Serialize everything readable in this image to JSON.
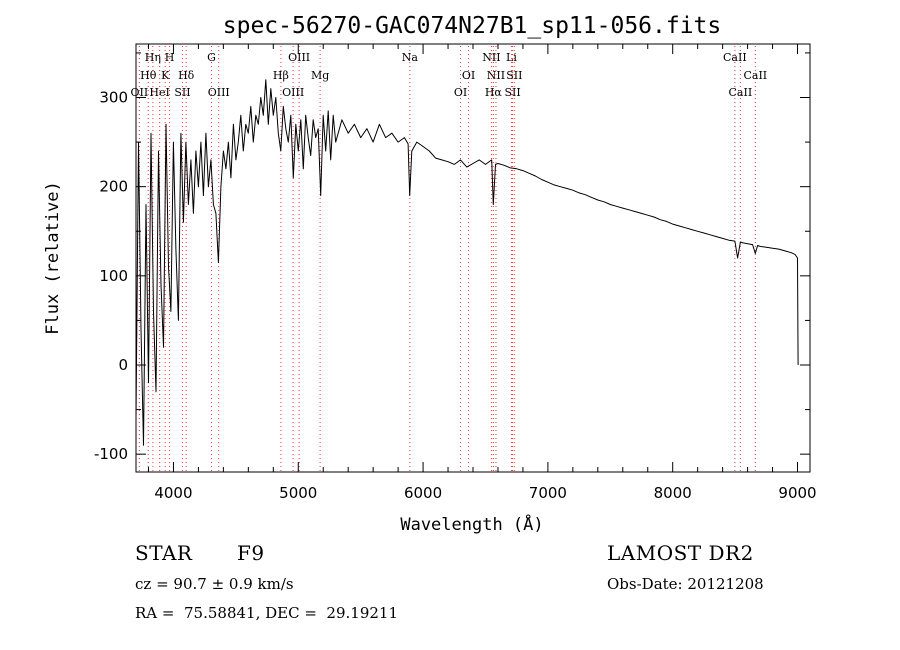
{
  "chart_data": {
    "type": "line",
    "title": "spec-56270-GAC074N27B1_sp11-056.fits",
    "xlabel": "Wavelength (Å)",
    "ylabel": "Flux (relative)",
    "xlim": [
      3700,
      9100
    ],
    "ylim": [
      -120,
      360
    ],
    "xticks": [
      4000,
      5000,
      6000,
      7000,
      8000,
      9000
    ],
    "yticks": [
      -100,
      0,
      100,
      200,
      300
    ],
    "grid": false,
    "series": [
      {
        "x": [
          3700,
          3720,
          3740,
          3760,
          3780,
          3800,
          3820,
          3840,
          3860,
          3880,
          3900,
          3920,
          3940,
          3960,
          3980,
          4000,
          4020,
          4040,
          4060,
          4080,
          4100,
          4120,
          4140,
          4160,
          4180,
          4200,
          4220,
          4240,
          4260,
          4280,
          4300,
          4320,
          4340,
          4360,
          4380,
          4400,
          4420,
          4440,
          4460,
          4480,
          4500,
          4520,
          4540,
          4560,
          4580,
          4600,
          4620,
          4640,
          4660,
          4680,
          4700,
          4720,
          4740,
          4760,
          4780,
          4800,
          4820,
          4840,
          4860,
          4880,
          4900,
          4920,
          4940,
          4960,
          4980,
          5000,
          5020,
          5040,
          5060,
          5080,
          5100,
          5120,
          5140,
          5160,
          5180,
          5200,
          5220,
          5240,
          5260,
          5280,
          5300,
          5350,
          5400,
          5450,
          5500,
          5550,
          5600,
          5650,
          5700,
          5750,
          5800,
          5850,
          5880,
          5893,
          5910,
          5950,
          6000,
          6050,
          6100,
          6150,
          6200,
          6250,
          6300,
          6350,
          6400,
          6450,
          6500,
          6550,
          6563,
          6580,
          6600,
          6650,
          6700,
          6750,
          6800,
          6850,
          6900,
          6950,
          7000,
          7050,
          7100,
          7150,
          7200,
          7250,
          7300,
          7350,
          7400,
          7450,
          7500,
          7550,
          7600,
          7650,
          7700,
          7750,
          7800,
          7850,
          7900,
          7950,
          8000,
          8050,
          8100,
          8150,
          8200,
          8250,
          8300,
          8350,
          8400,
          8450,
          8498,
          8520,
          8542,
          8560,
          8600,
          8640,
          8662,
          8680,
          8700,
          8750,
          8800,
          8850,
          8900,
          8950,
          8980,
          9000,
          9005
        ],
        "values": [
          -60,
          250,
          40,
          -90,
          180,
          -20,
          260,
          60,
          -30,
          240,
          90,
          20,
          270,
          110,
          60,
          250,
          130,
          50,
          260,
          160,
          250,
          180,
          230,
          170,
          240,
          200,
          250,
          190,
          260,
          200,
          230,
          180,
          170,
          115,
          200,
          240,
          220,
          250,
          210,
          270,
          230,
          250,
          280,
          240,
          270,
          260,
          290,
          250,
          280,
          270,
          300,
          280,
          320,
          270,
          310,
          280,
          300,
          260,
          240,
          290,
          265,
          250,
          280,
          210,
          270,
          240,
          275,
          220,
          280,
          255,
          235,
          275,
          255,
          265,
          190,
          280,
          240,
          285,
          230,
          280,
          250,
          275,
          260,
          270,
          255,
          265,
          250,
          270,
          255,
          260,
          250,
          255,
          248,
          190,
          240,
          250,
          245,
          240,
          232,
          230,
          228,
          225,
          230,
          222,
          226,
          230,
          225,
          230,
          180,
          225,
          226,
          224,
          221,
          220,
          218,
          215,
          212,
          208,
          205,
          202,
          200,
          198,
          196,
          193,
          191,
          188,
          185,
          183,
          180,
          178,
          176,
          174,
          172,
          170,
          168,
          166,
          163,
          161,
          158,
          156,
          154,
          152,
          150,
          148,
          146,
          144,
          142,
          140,
          139,
          120,
          138,
          137,
          136,
          135,
          125,
          134,
          133,
          132,
          131,
          130,
          128,
          126,
          124,
          120,
          0
        ]
      }
    ],
    "lines": [
      {
        "label": "OII",
        "x": 3727,
        "row": 3
      },
      {
        "label": "Hθ",
        "x": 3798,
        "row": 2
      },
      {
        "label": "Hη",
        "x": 3835,
        "row": 1
      },
      {
        "label": "HeI",
        "x": 3889,
        "row": 3
      },
      {
        "label": "K",
        "x": 3934,
        "row": 2
      },
      {
        "label": "H",
        "x": 3969,
        "row": 1
      },
      {
        "label": "SII",
        "x": 4072,
        "row": 3
      },
      {
        "label": "Hδ",
        "x": 4102,
        "row": 2
      },
      {
        "label": "G",
        "x": 4305,
        "row": 1
      },
      {
        "label": "OIII",
        "x": 4363,
        "row": 3
      },
      {
        "label": "Hβ",
        "x": 4861,
        "row": 2
      },
      {
        "label": "OIII",
        "x": 4959,
        "row": 3
      },
      {
        "label": "OIII",
        "x": 5007,
        "row": 1
      },
      {
        "label": "Mg",
        "x": 5175,
        "row": 2
      },
      {
        "label": "Na",
        "x": 5894,
        "row": 1
      },
      {
        "label": "OI",
        "x": 6300,
        "row": 3
      },
      {
        "label": "OI",
        "x": 6364,
        "row": 2
      },
      {
        "label": "NII",
        "x": 6548,
        "row": 1
      },
      {
        "label": "Hα",
        "x": 6563,
        "row": 3
      },
      {
        "label": "NII",
        "x": 6584,
        "row": 2
      },
      {
        "label": "Li",
        "x": 6708,
        "row": 1
      },
      {
        "label": "SII",
        "x": 6717,
        "row": 3
      },
      {
        "label": "SII",
        "x": 6731,
        "row": 2
      },
      {
        "label": "CaII",
        "x": 8498,
        "row": 1
      },
      {
        "label": "CaII",
        "x": 8542,
        "row": 3
      },
      {
        "label": "CaII",
        "x": 8662,
        "row": 2
      }
    ]
  },
  "info": {
    "class_label": "STAR",
    "subclass": "F9",
    "cz": "cz = 90.7 ± 0.9 km/s",
    "radec": "RA =  75.58841, DEC =  29.19211",
    "survey": "LAMOST DR2",
    "obs_date": "Obs-Date: 20121208"
  },
  "colors": {
    "line_markers": "#ff3333",
    "spectrum": "#000000"
  }
}
